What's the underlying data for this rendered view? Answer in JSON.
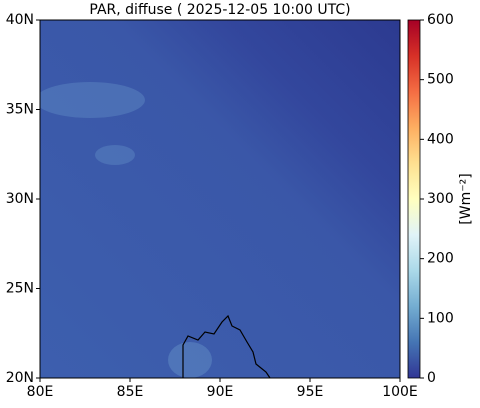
{
  "chart_data": {
    "type": "map",
    "title": "PAR, diffuse ( 2025-12-05 10:00 UTC)",
    "xlim": [
      80,
      100
    ],
    "xticks": [
      {
        "value": 80,
        "label": "80E"
      },
      {
        "value": 85,
        "label": "85E"
      },
      {
        "value": 90,
        "label": "90E"
      },
      {
        "value": 95,
        "label": "95E"
      },
      {
        "value": 100,
        "label": "100E"
      }
    ],
    "ylim": [
      20,
      40
    ],
    "yticks": [
      {
        "value": 20,
        "label": "20N"
      },
      {
        "value": 25,
        "label": "25N"
      },
      {
        "value": 30,
        "label": "30N"
      },
      {
        "value": 35,
        "label": "35N"
      },
      {
        "value": 40,
        "label": "40N"
      }
    ],
    "colorbar_label": "[Wm⁻²]",
    "clim": [
      0,
      600
    ],
    "cticks": [
      0,
      100,
      200,
      300,
      400,
      500,
      600
    ]
  }
}
